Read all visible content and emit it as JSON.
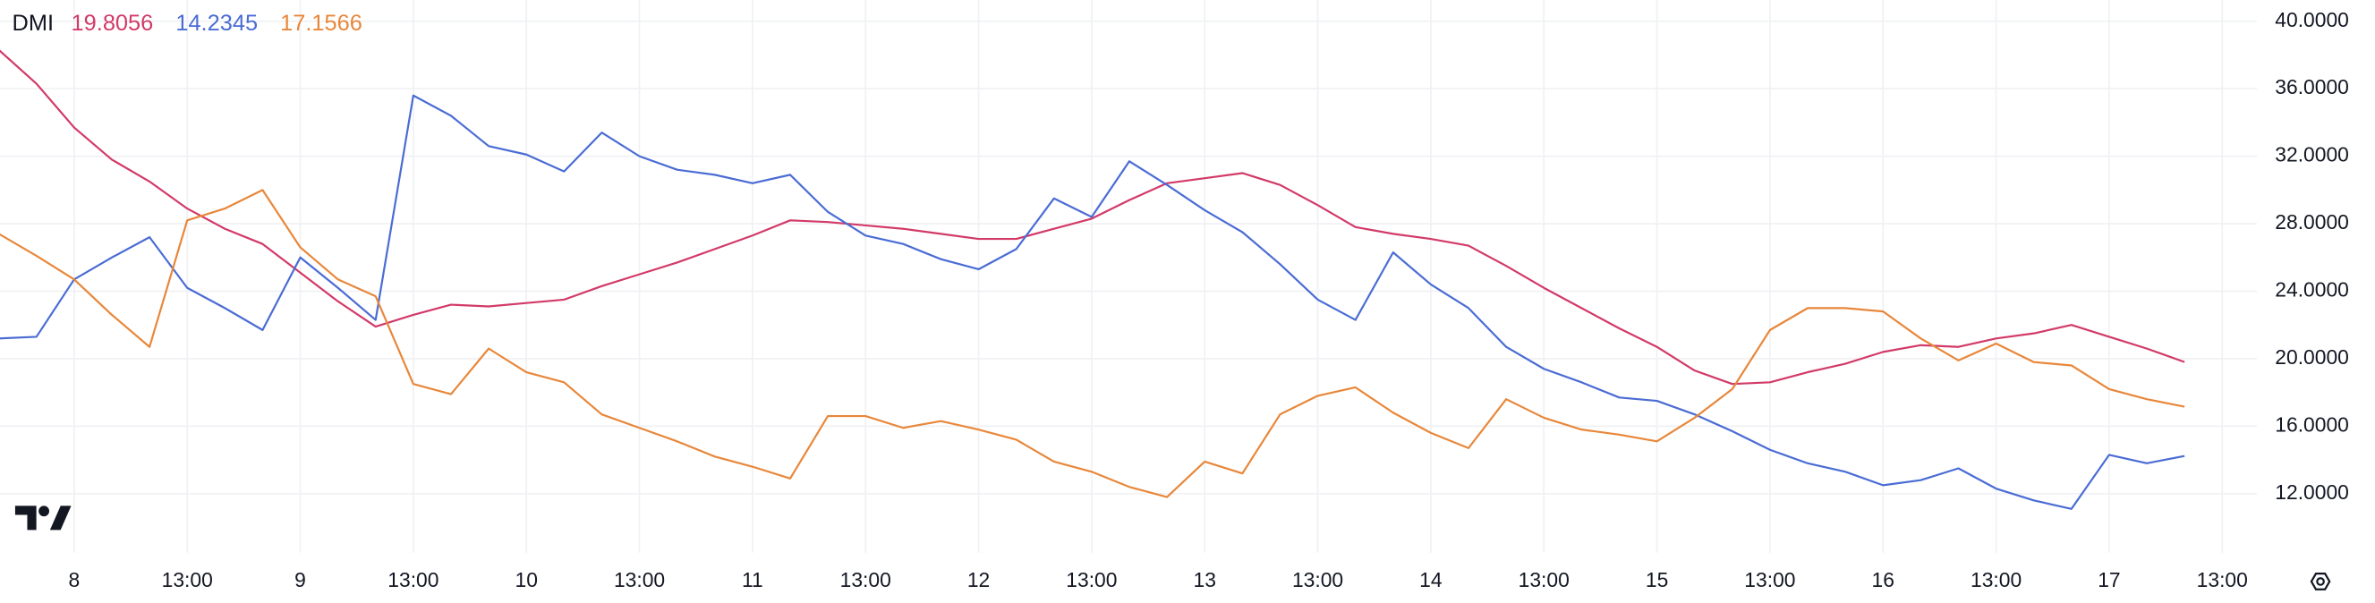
{
  "chart_data": {
    "type": "line",
    "title": "DMI",
    "categories": [
      null,
      null,
      "8",
      null,
      null,
      "13:00",
      null,
      null,
      "9",
      null,
      null,
      "13:00",
      null,
      null,
      "10",
      null,
      null,
      "13:00",
      null,
      null,
      "11",
      null,
      null,
      "13:00",
      null,
      null,
      "12",
      null,
      null,
      "13:00",
      null,
      null,
      "13",
      null,
      null,
      "13:00",
      null,
      null,
      "14",
      null,
      null,
      "13:00",
      null,
      null,
      "15",
      null,
      null,
      "13:00",
      null,
      null,
      "16",
      null,
      null,
      "13:00",
      null,
      null,
      "17",
      null,
      null,
      "13:00"
    ],
    "series": [
      {
        "color": "#d23a68",
        "values": [
          38.3,
          36.3,
          33.7,
          31.8,
          30.5,
          28.9,
          27.7,
          26.8,
          25.1,
          23.4,
          21.9,
          22.6,
          23.2,
          23.1,
          23.3,
          23.5,
          24.3,
          25.0,
          25.7,
          26.5,
          27.3,
          28.2,
          28.1,
          27.9,
          27.7,
          27.4,
          27.1,
          27.1,
          27.7,
          28.3,
          29.4,
          30.4,
          30.7,
          31.0,
          30.3,
          29.1,
          27.8,
          27.4,
          27.1,
          26.7,
          25.5,
          24.2,
          23.0,
          21.8,
          20.7,
          19.3,
          18.5,
          18.6,
          19.2,
          19.7,
          20.4,
          20.8,
          20.7,
          21.2,
          21.5,
          22.0,
          21.3,
          20.6,
          19.8056,
          null
        ]
      },
      {
        "color": "#4a6cd4",
        "values": [
          21.2,
          21.3,
          24.7,
          26.0,
          27.2,
          24.2,
          23.0,
          21.7,
          26.0,
          24.2,
          22.3,
          35.6,
          34.4,
          32.6,
          32.1,
          31.1,
          33.4,
          32.0,
          31.2,
          30.9,
          30.4,
          30.9,
          28.7,
          27.3,
          26.8,
          25.9,
          25.3,
          26.5,
          29.5,
          28.4,
          31.7,
          30.3,
          28.8,
          27.5,
          25.6,
          23.5,
          22.3,
          26.3,
          24.4,
          23.0,
          20.7,
          19.4,
          18.6,
          17.7,
          17.5,
          16.7,
          15.7,
          14.6,
          13.8,
          13.3,
          12.5,
          12.8,
          13.5,
          12.3,
          11.6,
          11.1,
          14.3,
          13.8,
          14.2345,
          null
        ]
      },
      {
        "color": "#e8873a",
        "values": [
          27.4,
          26.1,
          24.7,
          22.6,
          20.7,
          28.2,
          28.9,
          30.0,
          26.6,
          24.7,
          23.7,
          18.5,
          17.9,
          20.6,
          19.2,
          18.6,
          16.7,
          15.9,
          15.1,
          14.2,
          13.6,
          12.9,
          16.6,
          16.6,
          15.9,
          16.3,
          15.8,
          15.2,
          13.9,
          13.3,
          12.4,
          11.8,
          13.9,
          13.2,
          16.7,
          17.8,
          18.3,
          16.8,
          15.6,
          14.7,
          17.6,
          16.5,
          15.8,
          15.5,
          15.1,
          16.5,
          18.2,
          21.7,
          23.0,
          23.0,
          22.8,
          21.2,
          19.9,
          20.9,
          19.8,
          19.6,
          18.2,
          17.6,
          17.1566,
          null
        ]
      }
    ],
    "ylim": [
      8.5,
      41.26
    ],
    "yticks": [
      {
        "value": 12,
        "label": "12.0000"
      },
      {
        "value": 16,
        "label": "16.0000"
      },
      {
        "value": 20,
        "label": "20.0000"
      },
      {
        "value": 24,
        "label": "24.0000"
      },
      {
        "value": 28,
        "label": "28.0000"
      },
      {
        "value": 32,
        "label": "32.0000"
      },
      {
        "value": 36,
        "label": "36.0000"
      },
      {
        "value": 40,
        "label": "40.0000"
      }
    ],
    "grid": true
  }
}
